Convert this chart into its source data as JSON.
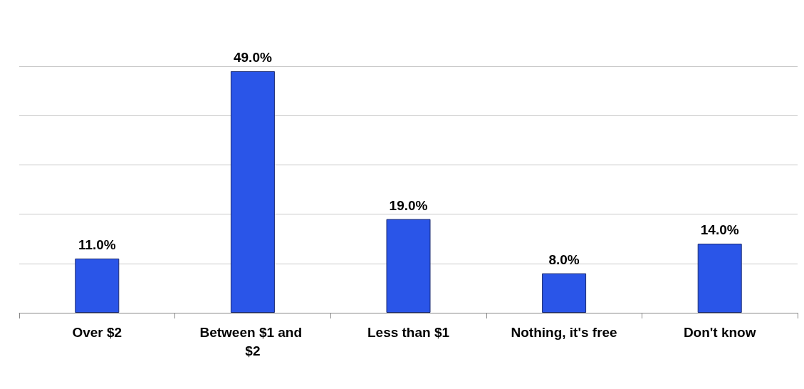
{
  "chart_data": {
    "type": "bar",
    "categories": [
      "Over $2",
      "Between $1 and $2",
      "Less than $1",
      "Nothing, it's free",
      "Don't know"
    ],
    "values": [
      11.0,
      49.0,
      19.0,
      8.0,
      14.0
    ],
    "value_labels": [
      "11.0%",
      "49.0%",
      "19.0%",
      "8.0%",
      "14.0%"
    ],
    "color": "#2a55e8",
    "ylim": [
      0,
      50
    ],
    "yticks": [
      {
        "value": 0,
        "label": null
      },
      {
        "value": 10,
        "label": null
      },
      {
        "value": 20,
        "label": null
      },
      {
        "value": 30,
        "label": null
      },
      {
        "value": 40,
        "label": null
      },
      {
        "value": 50,
        "label": null
      }
    ],
    "grid": "y",
    "tick_labels": "x"
  }
}
